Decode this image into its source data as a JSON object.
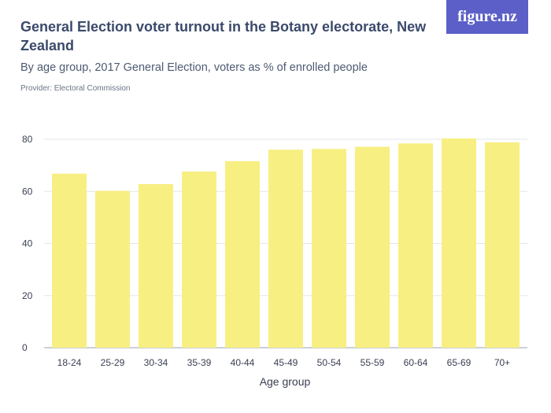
{
  "header": {
    "title": "General Election voter turnout in the Botany electorate, New Zealand",
    "subtitle": "By age group, 2017 General Election, voters as % of enrolled people",
    "provider": "Provider: Electoral Commission",
    "logo_text": "figure.nz",
    "logo_color": "#5b5fc7"
  },
  "chart_data": {
    "type": "bar",
    "title": "General Election voter turnout in the Botany electorate, New Zealand",
    "subtitle": "By age group, 2017 General Election, voters as % of enrolled people",
    "xlabel": "Age group",
    "ylabel": "",
    "categories": [
      "18-24",
      "25-29",
      "30-34",
      "35-39",
      "40-44",
      "45-49",
      "50-54",
      "55-59",
      "60-64",
      "65-69",
      "70+"
    ],
    "values": [
      66.8,
      60.2,
      62.8,
      67.6,
      71.6,
      76.0,
      76.3,
      77.1,
      78.4,
      80.3,
      78.8
    ],
    "ylim": [
      0,
      80
    ],
    "yticks": [
      0,
      20,
      40,
      60,
      80
    ],
    "grid": true,
    "bar_color": "#f7ef82"
  }
}
